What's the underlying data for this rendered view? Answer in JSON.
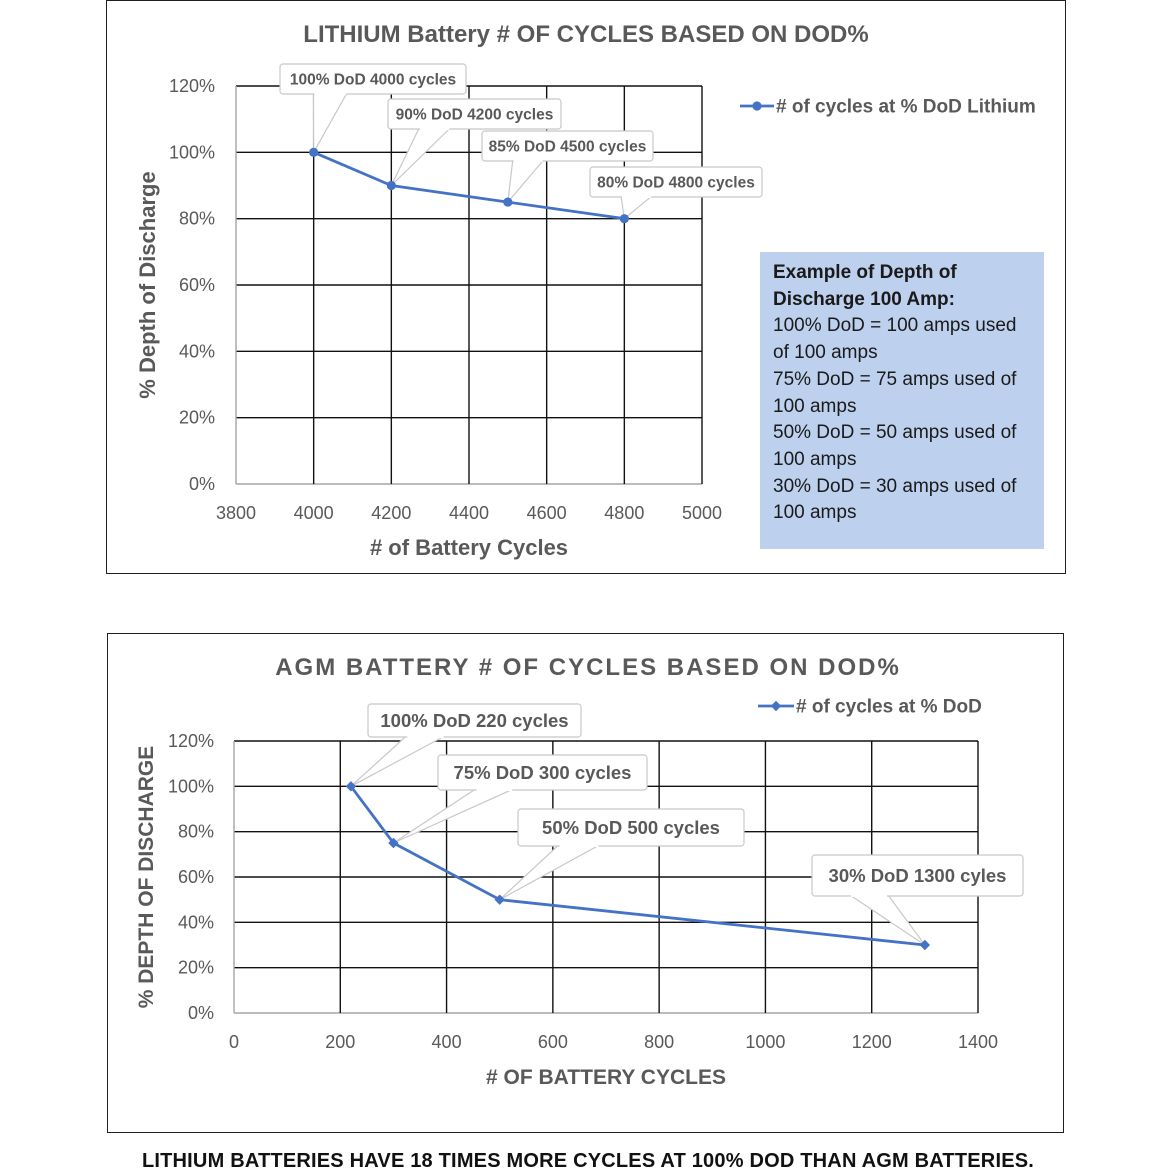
{
  "colors": {
    "series": "#4472c4",
    "grid": "#111111",
    "text": "#595959",
    "infobox_bg": "#bdd0ee"
  },
  "chart_data": [
    {
      "type": "line",
      "title": "LITHIUM Battery # OF CYCLES BASED ON DOD%",
      "xlabel": "# of Battery Cycles",
      "ylabel": "% Depth of Discharge",
      "xlim": [
        3800,
        5000
      ],
      "ylim": [
        0,
        120
      ],
      "x_ticks": [
        3800,
        4000,
        4200,
        4400,
        4600,
        4800,
        5000
      ],
      "y_ticks": [
        "0%",
        "20%",
        "40%",
        "60%",
        "80%",
        "100%",
        "120%"
      ],
      "grid": true,
      "legend_position": "top-right",
      "series": [
        {
          "name": "# of cycles at % DoD Lithium",
          "marker": "circle",
          "x": [
            4000,
            4200,
            4500,
            4800
          ],
          "y": [
            100,
            90,
            85,
            80
          ]
        }
      ],
      "annotations": [
        "100% DoD 4000 cycles",
        "90% DoD 4200 cycles",
        "85% DoD 4500 cycles",
        "80% DoD 4800 cycles"
      ]
    },
    {
      "type": "line",
      "title": "AGM BATTERY # OF CYCLES BASED ON DOD%",
      "xlabel": "# OF BATTERY CYCLES",
      "ylabel": "% DEPTH OF DISCHARGE",
      "xlim": [
        0,
        1400
      ],
      "ylim": [
        0,
        120
      ],
      "x_ticks": [
        0,
        200,
        400,
        600,
        800,
        1000,
        1200,
        1400
      ],
      "y_ticks": [
        "0%",
        "20%",
        "40%",
        "60%",
        "80%",
        "100%",
        "120%"
      ],
      "grid": true,
      "legend_position": "top-right",
      "series": [
        {
          "name": "# of cycles at % DoD",
          "marker": "diamond",
          "x": [
            220,
            300,
            500,
            1300
          ],
          "y": [
            100,
            75,
            50,
            30
          ]
        }
      ],
      "annotations": [
        "100% DoD 220 cycles",
        "75% DoD 300 cycles",
        "50% DoD 500 cycles",
        "30% DoD 1300 cyles"
      ]
    }
  ],
  "infobox": {
    "header": [
      "Example of Depth of",
      "Discharge 100 Amp:"
    ],
    "lines": [
      "100% DoD = 100 amps used",
      "of 100 amps",
      "75% DoD = 75 amps used of",
      "100 amps",
      "50% DoD = 50 amps used of",
      "100 amps",
      "30% DoD = 30 amps used of",
      "100 amps"
    ]
  },
  "footer": "LITHIUM BATTERIES HAVE 18 TIMES MORE CYCLES AT 100% DOD THAN AGM BATTERIES."
}
